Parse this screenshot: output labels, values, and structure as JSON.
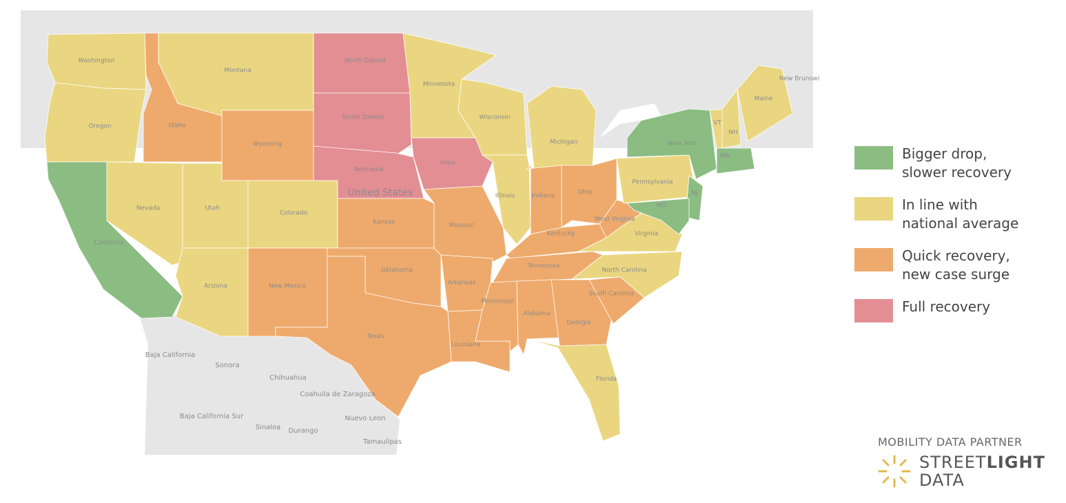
{
  "map": {
    "categories": [
      {
        "lines": [
          "Bigger drop,",
          "slower recovery"
        ],
        "color": "#8bbd82"
      },
      {
        "lines": [
          "In line with",
          "national average"
        ],
        "color": "#ead680"
      },
      {
        "lines": [
          "Quick recovery,",
          "new case surge"
        ],
        "color": "#eeaa6c"
      },
      {
        "lines": [
          "Full recovery"
        ],
        "color": "#e38e93"
      }
    ],
    "states": [
      {
        "name": "Washington",
        "category": 1
      },
      {
        "name": "Oregon",
        "category": 1
      },
      {
        "name": "California",
        "category": 0
      },
      {
        "name": "Idaho",
        "category": 2
      },
      {
        "name": "Montana",
        "category": 1
      },
      {
        "name": "Wyoming",
        "category": 2
      },
      {
        "name": "Nevada",
        "category": 1
      },
      {
        "name": "Utah",
        "category": 1
      },
      {
        "name": "Colorado",
        "category": 1
      },
      {
        "name": "Arizona",
        "category": 1
      },
      {
        "name": "New Mexico",
        "category": 2
      },
      {
        "name": "North Dakota",
        "category": 3
      },
      {
        "name": "South Dakota",
        "category": 3
      },
      {
        "name": "Nebraska",
        "category": 3
      },
      {
        "name": "Kansas",
        "category": 2
      },
      {
        "name": "Oklahoma",
        "category": 2
      },
      {
        "name": "Texas",
        "category": 2
      },
      {
        "name": "Minnesota",
        "category": 1
      },
      {
        "name": "Iowa",
        "category": 3
      },
      {
        "name": "Missouri",
        "category": 2
      },
      {
        "name": "Arkansas",
        "category": 2
      },
      {
        "name": "Louisiana",
        "category": 2
      },
      {
        "name": "Wisconsin",
        "category": 1
      },
      {
        "name": "Illinois",
        "category": 1
      },
      {
        "name": "Michigan",
        "category": 1
      },
      {
        "name": "Indiana",
        "category": 2
      },
      {
        "name": "Ohio",
        "category": 2
      },
      {
        "name": "Kentucky",
        "category": 2
      },
      {
        "name": "Tennessee",
        "category": 2
      },
      {
        "name": "Mississippi",
        "category": 2
      },
      {
        "name": "Alabama",
        "category": 2
      },
      {
        "name": "Georgia",
        "category": 2
      },
      {
        "name": "Florida",
        "category": 1
      },
      {
        "name": "South Carolina",
        "category": 2
      },
      {
        "name": "North Carolina",
        "category": 1
      },
      {
        "name": "Virginia",
        "category": 1
      },
      {
        "name": "West Virginia",
        "category": 2
      },
      {
        "name": "Pennsylvania",
        "category": 1
      },
      {
        "name": "New York",
        "category": 0
      },
      {
        "name": "NJ",
        "category": 0
      },
      {
        "name": "MD",
        "category": 0
      },
      {
        "name": "VT",
        "category": 1
      },
      {
        "name": "NH",
        "category": 1
      },
      {
        "name": "Maine",
        "category": 1
      },
      {
        "name": "MA",
        "category": 0
      }
    ],
    "place_labels": [
      "United States",
      "Baja California",
      "Sonora",
      "Chihuahua",
      "Coahuila de Zaragoza",
      "Baja California Sur",
      "Sinaloa",
      "Durango",
      "Nuevo Leon",
      "Tamaulipas",
      "New Brunswick"
    ],
    "partner": "MOBILITY DATA PARTNER",
    "logo": {
      "street": "STREET",
      "light": "LIGHT",
      "data": "DATA"
    }
  }
}
